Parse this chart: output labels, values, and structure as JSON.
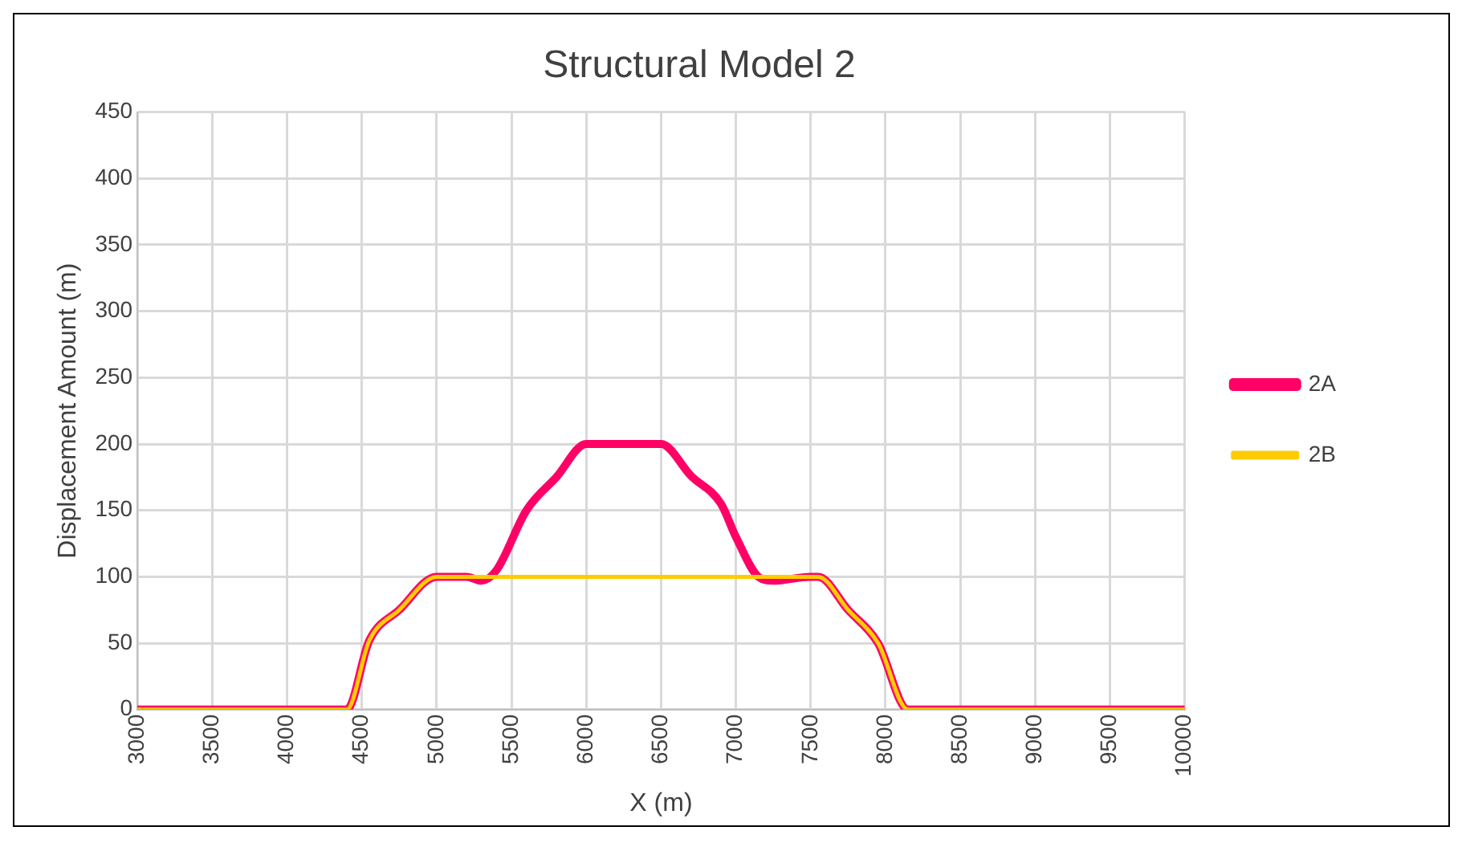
{
  "chart_data": {
    "type": "line",
    "title": "Structural Model 2",
    "xlabel": "X (m)",
    "ylabel": "Displacement Amount (m)",
    "xlim": [
      3000,
      10000
    ],
    "xticks": [
      3000,
      3500,
      4000,
      4500,
      5000,
      5500,
      6000,
      6500,
      7000,
      7500,
      8000,
      8500,
      9000,
      9500,
      10000
    ],
    "ylim": [
      0,
      450
    ],
    "yticks": [
      0,
      50,
      100,
      150,
      200,
      250,
      300,
      350,
      400,
      450
    ],
    "grid": true,
    "legend": "right",
    "marker": "none",
    "line_style": "solid",
    "series": [
      {
        "name": "2A",
        "color": "#ff0066",
        "x": [
          3000,
          4000,
          4200,
          4400,
          4550,
          4750,
          5000,
          5200,
          5300,
          5400,
          5600,
          5800,
          6000,
          6200,
          6500,
          6700,
          6900,
          7000,
          7150,
          7250,
          7500,
          7550,
          7750,
          7950,
          8150,
          8350,
          10000
        ],
        "values": [
          0,
          0,
          0,
          0,
          52,
          75,
          100,
          100,
          97,
          105,
          150,
          175,
          200,
          200,
          200,
          176,
          155,
          130,
          100,
          97,
          100,
          100,
          75,
          50,
          0,
          0,
          0
        ]
      },
      {
        "name": "2B",
        "color": "#ffcc00",
        "x": [
          3000,
          4000,
          4200,
          4400,
          4550,
          4750,
          5000,
          5500,
          6000,
          6500,
          7000,
          7500,
          7550,
          7750,
          7950,
          8150,
          8350,
          10000
        ],
        "values": [
          0,
          0,
          0,
          0,
          52,
          75,
          100,
          100,
          100,
          100,
          100,
          100,
          100,
          75,
          50,
          0,
          0,
          0
        ]
      }
    ]
  }
}
